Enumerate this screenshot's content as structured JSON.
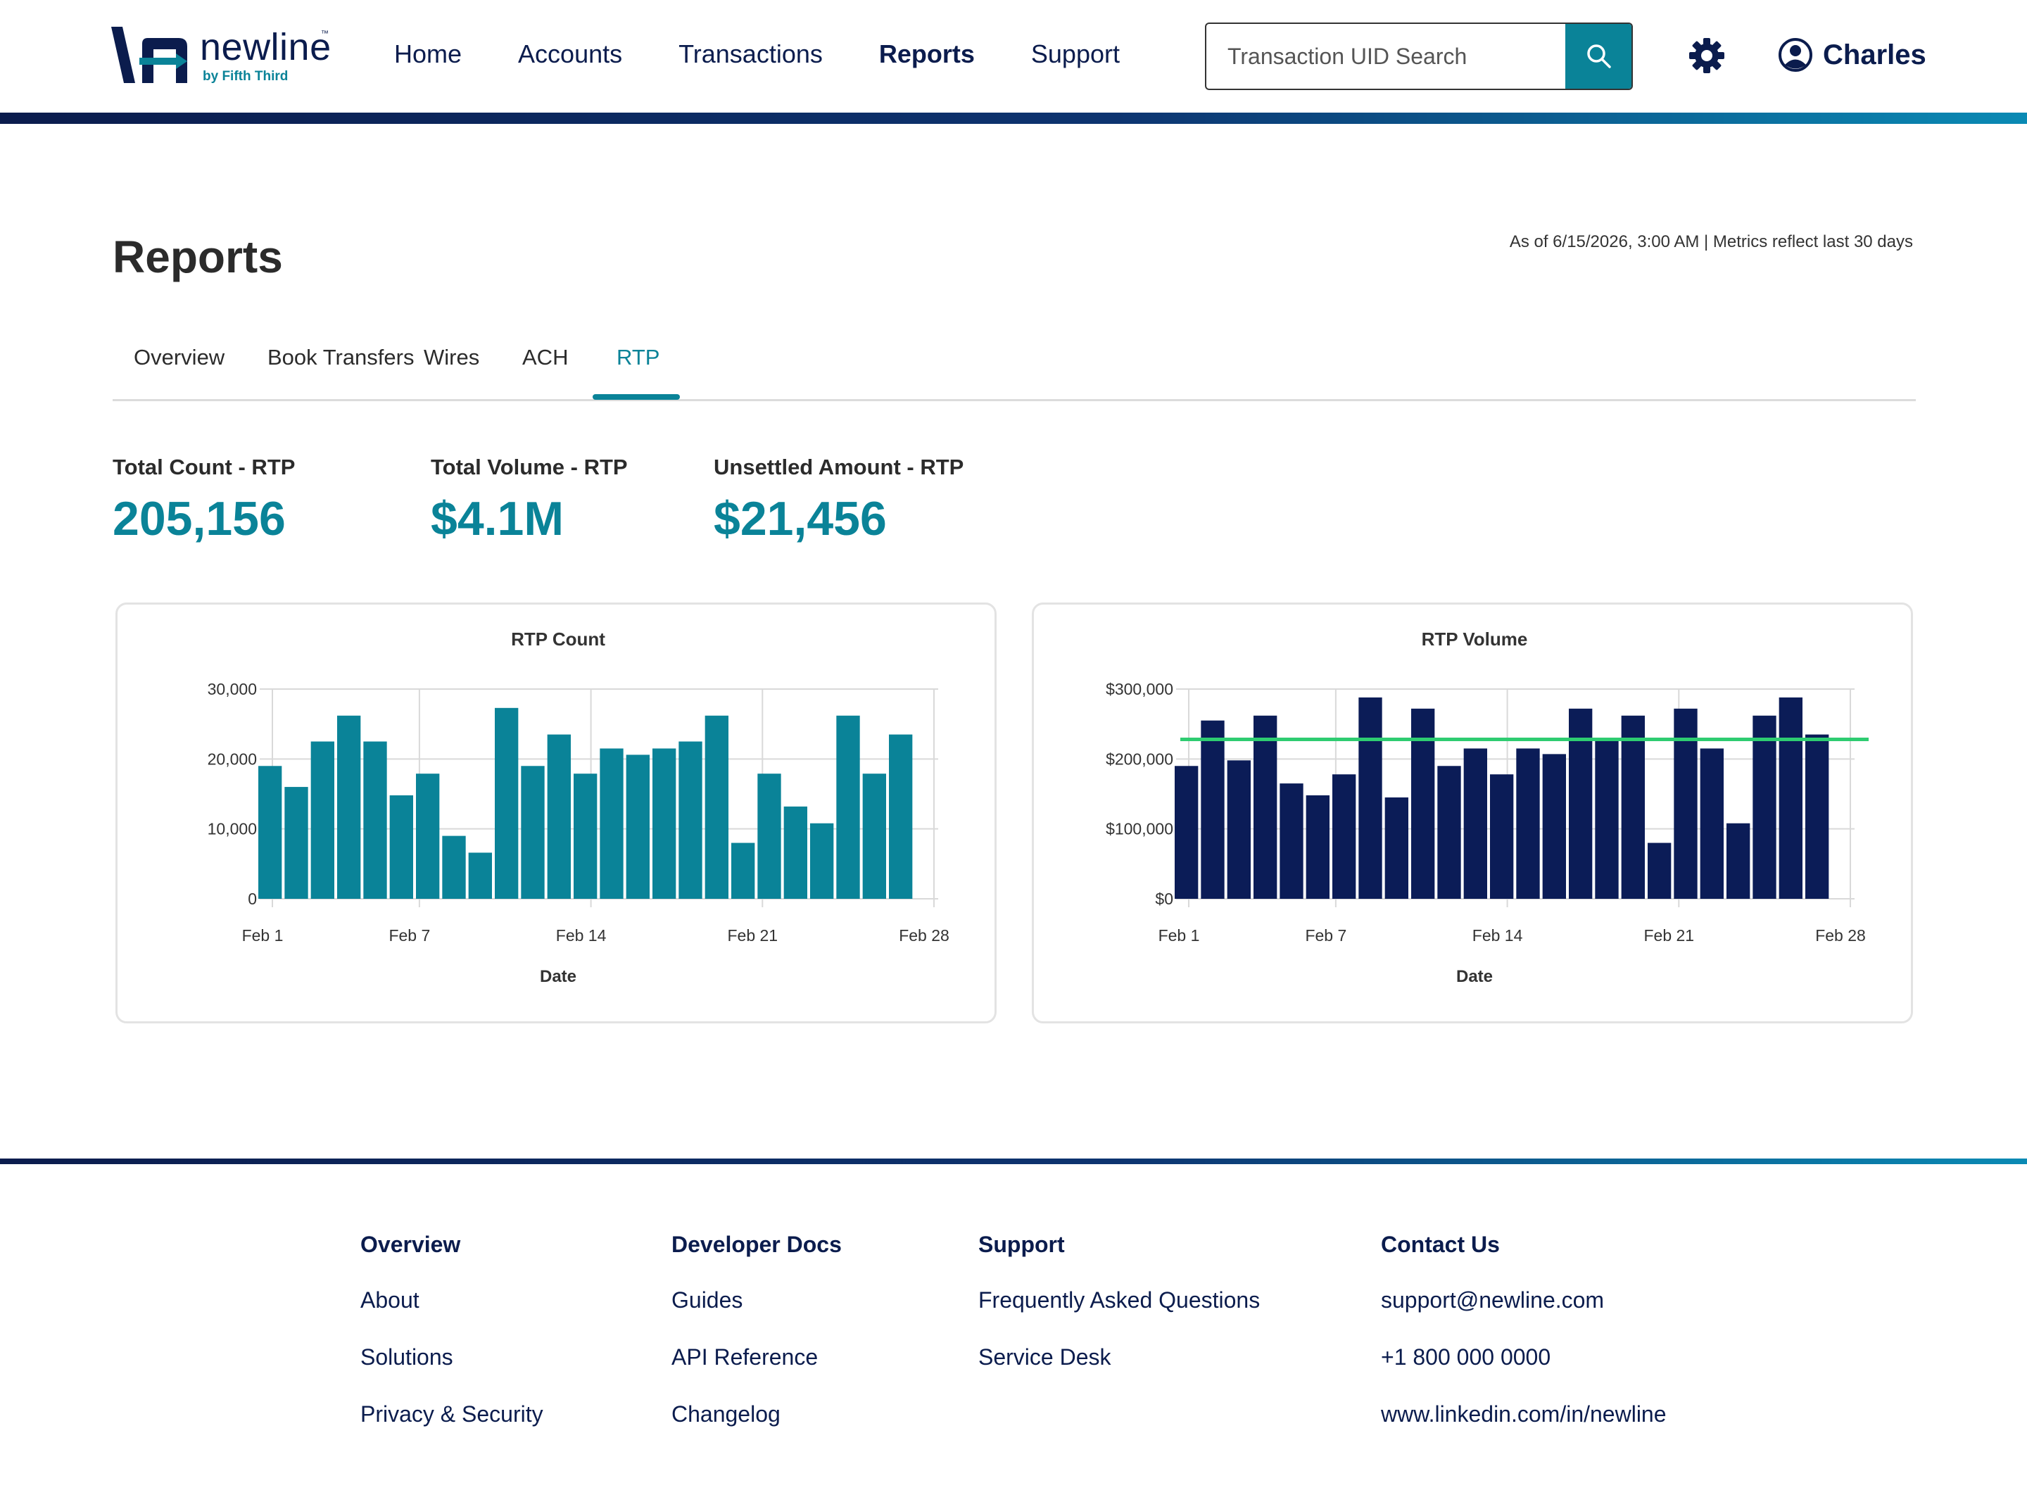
{
  "brand": {
    "name": "newline",
    "tm": "™",
    "sub": "by Fifth Third",
    "accent": "#0a8398",
    "navy": "#0b1c4d"
  },
  "nav": [
    {
      "label": "Home",
      "active": false
    },
    {
      "label": "Accounts",
      "active": false
    },
    {
      "label": "Transactions",
      "active": false
    },
    {
      "label": "Reports",
      "active": true
    },
    {
      "label": "Support",
      "active": false
    }
  ],
  "search": {
    "placeholder": "Transaction UID Search",
    "icon": "search-icon"
  },
  "settings": {
    "icon": "gear-icon"
  },
  "user": {
    "icon": "user-circle-icon",
    "name": "Charles"
  },
  "page": {
    "title": "Reports",
    "as_of": "As of 6/15/2026, 3:00 AM | Metrics reflect last 30 days"
  },
  "tabs": [
    {
      "label": "Overview",
      "active": false
    },
    {
      "label": "Book Transfers",
      "active": false
    },
    {
      "label": "Wires",
      "active": false
    },
    {
      "label": "ACH",
      "active": false
    },
    {
      "label": "RTP",
      "active": true
    }
  ],
  "metrics": [
    {
      "label": "Total Count - RTP",
      "value": "205,156"
    },
    {
      "label": "Total Volume - RTP",
      "value": "$4.1M"
    },
    {
      "label": "Unsettled Amount - RTP",
      "value": "$21,456"
    }
  ],
  "chart_data": [
    {
      "type": "bar",
      "title": "RTP Count",
      "xlabel": "Date",
      "ylabel": "",
      "ylim": [
        0,
        30000
      ],
      "yticks": [
        "0",
        "10,000",
        "20,000",
        "30,000"
      ],
      "xticks": [
        "Feb 1",
        "Feb 7",
        "Feb 14",
        "Feb 21",
        "Feb 28"
      ],
      "color": "#0a8398",
      "grid": true,
      "values": [
        19000,
        16000,
        22500,
        26200,
        22500,
        14800,
        17900,
        9000,
        6600,
        27300,
        19000,
        23500,
        17900,
        21500,
        20600,
        21500,
        22500,
        26200,
        8000,
        17900,
        13200,
        10800,
        26200,
        17900,
        23500
      ]
    },
    {
      "type": "bar",
      "title": "RTP Volume",
      "xlabel": "Date",
      "ylabel": "",
      "ylim": [
        0,
        300000
      ],
      "yticks": [
        "$0",
        "$100,000",
        "$200,000",
        "$300,000"
      ],
      "xticks": [
        "Feb 1",
        "Feb 7",
        "Feb 14",
        "Feb 21",
        "Feb 28"
      ],
      "color": "#0b1c57",
      "grid": true,
      "reference_line": {
        "value": 228000,
        "color": "#2ecc71"
      },
      "values": [
        190000,
        255000,
        198000,
        262000,
        165000,
        148000,
        178000,
        288000,
        145000,
        272000,
        190000,
        215000,
        178000,
        215000,
        207000,
        272000,
        228000,
        262000,
        80000,
        272000,
        215000,
        108000,
        262000,
        288000,
        235000
      ]
    }
  ],
  "footer": [
    {
      "head": "Overview",
      "links": [
        "About",
        "Solutions",
        "Privacy & Security"
      ]
    },
    {
      "head": "Developer Docs",
      "links": [
        "Guides",
        "API Reference",
        "Changelog"
      ]
    },
    {
      "head": "Support",
      "links": [
        "Frequently Asked Questions",
        "Service Desk"
      ]
    },
    {
      "head": "Contact Us",
      "links": [
        "support@newline.com",
        "+1 800 000 0000",
        "www.linkedin.com/in/newline"
      ]
    }
  ]
}
